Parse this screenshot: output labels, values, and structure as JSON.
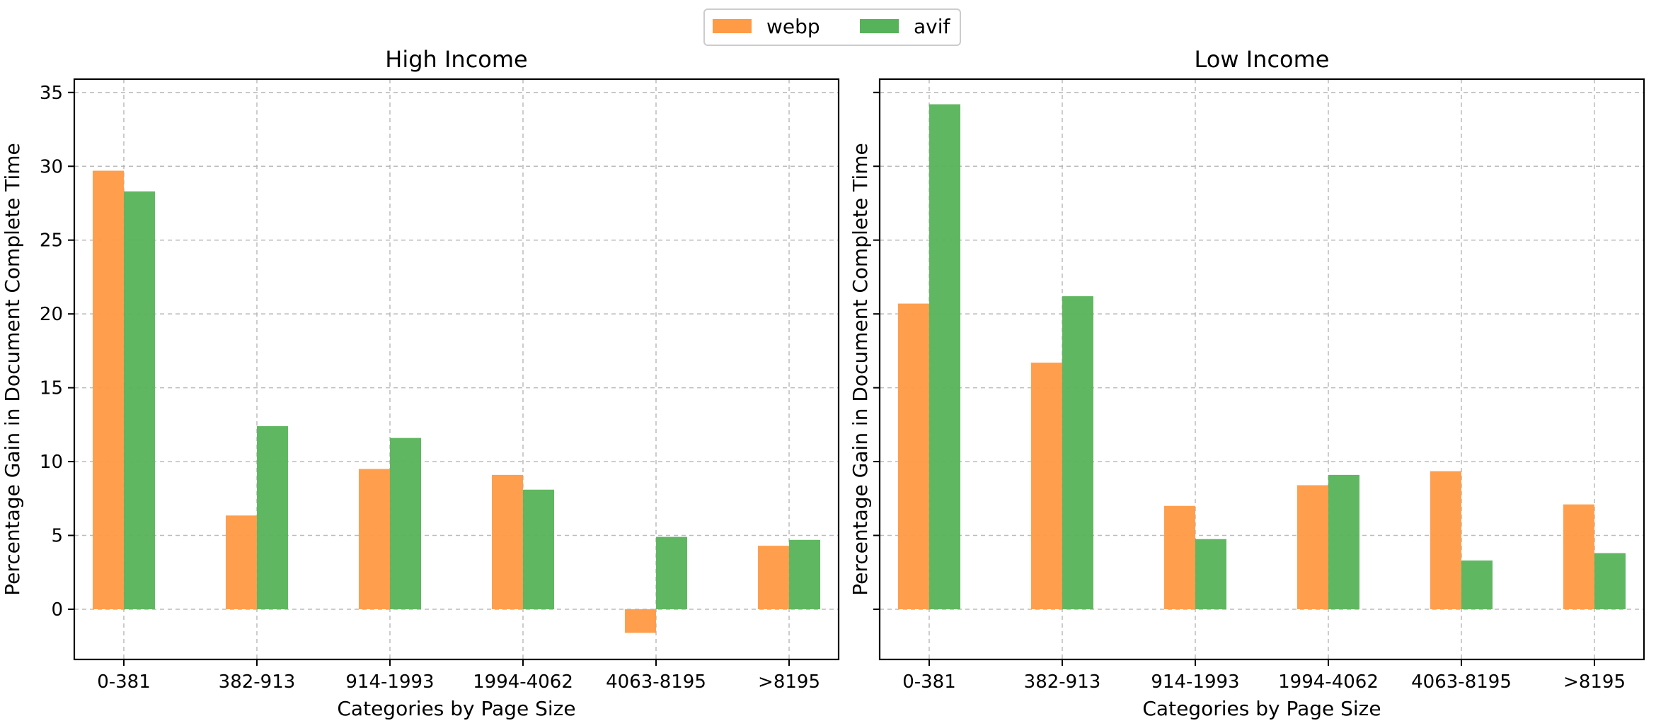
{
  "legend": {
    "entries": [
      {
        "label": "webp",
        "color": "#ff9a45"
      },
      {
        "label": "avif",
        "color": "#57b359"
      }
    ],
    "placement": "top-center"
  },
  "chart_data": [
    {
      "type": "bar",
      "title": "High Income",
      "xlabel": "Categories by Page Size",
      "ylabel": "Percentage Gain in Document Complete Time",
      "categories": [
        "0-381",
        "382-913",
        "914-1993",
        "1994-4062",
        "4063-8195",
        ">8195"
      ],
      "series": [
        {
          "name": "webp",
          "color": "#ff9a45",
          "values": [
            29.7,
            6.35,
            9.5,
            9.1,
            -1.6,
            4.3
          ]
        },
        {
          "name": "avif",
          "color": "#57b359",
          "values": [
            28.3,
            12.4,
            11.6,
            8.1,
            4.9,
            4.7
          ]
        }
      ],
      "ylim": [
        -3.4,
        35.9
      ],
      "yticks": [
        0,
        5,
        10,
        15,
        20,
        25,
        30,
        35
      ],
      "ytick_labels": [
        "0",
        "5",
        "10",
        "15",
        "20",
        "25",
        "30",
        "35"
      ],
      "grid": true
    },
    {
      "type": "bar",
      "title": "Low Income",
      "xlabel": "Categories by Page Size",
      "ylabel": "Percentage Gain in Document Complete Time",
      "categories": [
        "0-381",
        "382-913",
        "914-1993",
        "1994-4062",
        "4063-8195",
        ">8195"
      ],
      "series": [
        {
          "name": "webp",
          "color": "#ff9a45",
          "values": [
            20.7,
            16.7,
            7.0,
            8.4,
            9.35,
            7.1
          ]
        },
        {
          "name": "avif",
          "color": "#57b359",
          "values": [
            34.2,
            21.2,
            4.75,
            9.1,
            3.3,
            3.8
          ]
        }
      ],
      "ylim": [
        -3.4,
        35.9
      ],
      "yticks": [
        0,
        5,
        10,
        15,
        20,
        25,
        30,
        35
      ],
      "ytick_labels": [],
      "grid": true
    }
  ]
}
